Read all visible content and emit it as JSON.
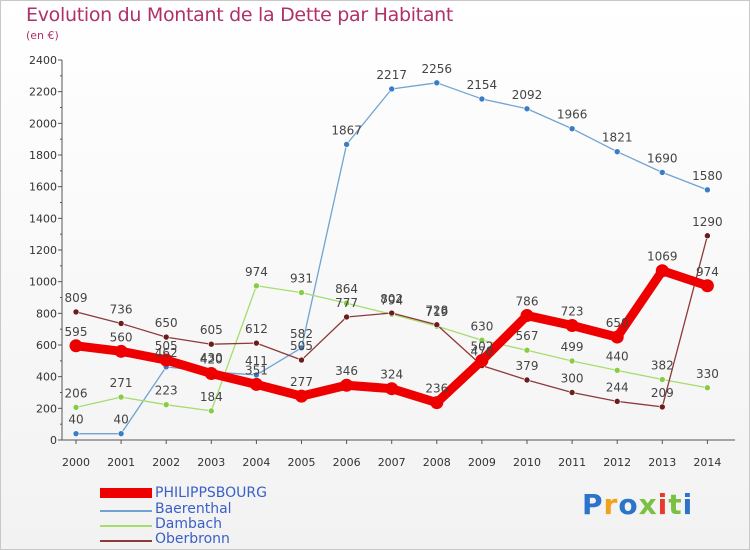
{
  "chart_data": {
    "type": "line",
    "title": "Evolution du Montant de la Dette par Habitant",
    "subtitle": "(en €)",
    "x": [
      2000,
      2001,
      2002,
      2003,
      2004,
      2005,
      2006,
      2007,
      2008,
      2009,
      2010,
      2011,
      2012,
      2013,
      2014
    ],
    "ylim": [
      0,
      2400
    ],
    "yticks": [
      0,
      200,
      400,
      600,
      800,
      1000,
      1200,
      1400,
      1600,
      1800,
      2000,
      2200,
      2400
    ],
    "grid": false,
    "legend_position": "bottom-left",
    "series": [
      {
        "name": "Baerenthal",
        "color": "#6fa3d2",
        "dot": "#3b7dc4",
        "width": 1.3,
        "values": [
          40,
          40,
          462,
          430,
          411,
          582,
          1867,
          2217,
          2256,
          2154,
          2092,
          1966,
          1821,
          1690,
          1580
        ],
        "labels": [
          "40",
          "40",
          "462",
          "430",
          "411",
          "582",
          "1867",
          "2217",
          "2256",
          "2154",
          "2092",
          "1966",
          "1821",
          "1690",
          "1580"
        ]
      },
      {
        "name": "Dambach",
        "color": "#a6dd6e",
        "dot": "#86cc48",
        "width": 1.3,
        "values": [
          206,
          271,
          223,
          184,
          974,
          931,
          864,
          794,
          719,
          630,
          567,
          499,
          440,
          382,
          330
        ],
        "labels": [
          "206",
          "271",
          "223",
          "184",
          "974",
          "931",
          "864",
          "794",
          "719",
          "630",
          "567",
          "499",
          "440",
          "382",
          "330"
        ]
      },
      {
        "name": "Oberbronn",
        "color": "#8c3a3a",
        "dot": "#6b1c1c",
        "width": 1.3,
        "values": [
          809,
          736,
          650,
          605,
          612,
          505,
          777,
          802,
          728,
          470,
          379,
          300,
          244,
          209,
          1290
        ],
        "labels": [
          "809",
          "736",
          "650",
          "605",
          "612",
          "505",
          "777",
          "802",
          "728",
          "470",
          "379",
          "300",
          "244",
          "209",
          "1290"
        ]
      },
      {
        "name": "PHILIPPSBOURG",
        "color": "#ee0000",
        "dot": "#ee0000",
        "width": 9,
        "values": [
          595,
          560,
          505,
          420,
          351,
          277,
          346,
          324,
          236,
          502,
          786,
          723,
          650,
          1069,
          974
        ],
        "labels": [
          "595",
          "560",
          "505",
          "420",
          "351",
          "277",
          "346",
          "324",
          "236",
          "502",
          "786",
          "723",
          "650",
          "1069",
          "974"
        ]
      }
    ],
    "legend": [
      "PHILIPPSBOURG",
      "Baerenthal",
      "Dambach",
      "Oberbronn"
    ]
  },
  "logo": {
    "text": "Proxiti",
    "colors": [
      "#2b74c9",
      "#f2a21a",
      "#2b74c9",
      "#7ac143",
      "#e8392b",
      "#7ac143",
      "#2b74c9"
    ]
  }
}
